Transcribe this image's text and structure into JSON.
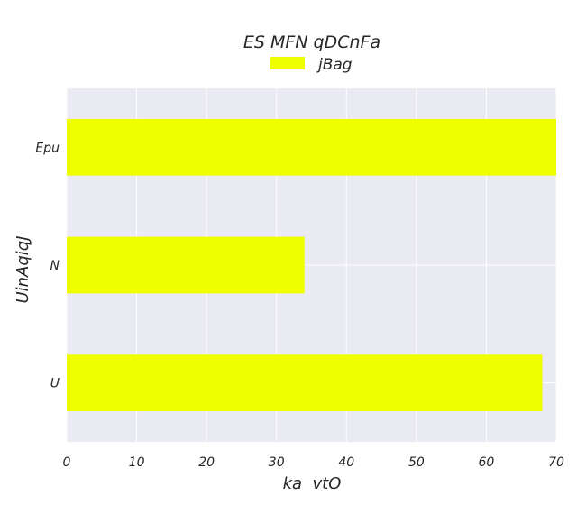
{
  "chart_data": {
    "type": "bar",
    "orientation": "horizontal",
    "title": "ES MFN qDCnFa",
    "xlabel": "ka  vtO",
    "ylabel": "UinAqiqJ",
    "categories": [
      "U",
      "N",
      "Epu"
    ],
    "series": [
      {
        "name": "jBag",
        "values": [
          68,
          34,
          70
        ],
        "color": "#f0ff00"
      }
    ],
    "xlim": [
      0,
      70
    ],
    "xticks": [
      0,
      10,
      20,
      30,
      40,
      50,
      60,
      70
    ],
    "grid": true,
    "legend": "top-center",
    "background": "#eaeaf2"
  }
}
